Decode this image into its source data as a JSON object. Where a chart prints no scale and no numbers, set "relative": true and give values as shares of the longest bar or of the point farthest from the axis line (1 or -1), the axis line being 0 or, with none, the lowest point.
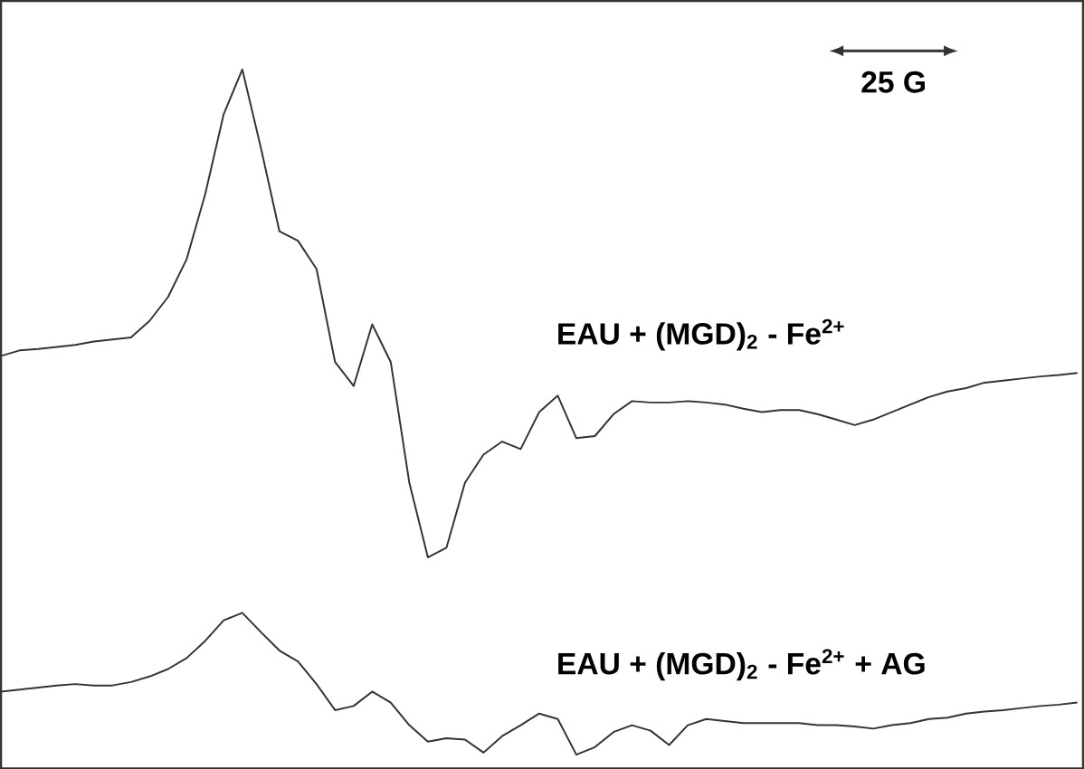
{
  "chart_data": {
    "type": "line",
    "relative": true,
    "legend": false,
    "marker": "none",
    "line_style": "solid",
    "categories": [
      null,
      null,
      null,
      null,
      null,
      null,
      null,
      null,
      null,
      null,
      null,
      null,
      null,
      null,
      null,
      null,
      null,
      null,
      null,
      null,
      null,
      null,
      null,
      null,
      null,
      null,
      null,
      null,
      null,
      null,
      null,
      null,
      null,
      null,
      null,
      null,
      null,
      null,
      null,
      null,
      null,
      null,
      null,
      null,
      null,
      null,
      null,
      null,
      null,
      null,
      null,
      null,
      null,
      null,
      null,
      null,
      null,
      null,
      null
    ],
    "series": [
      {
        "name": "EAU + (MGD)$_{2}$ - Fe$^{2+}$",
        "color": "#333333",
        "values": [
          0.582,
          0.59,
          0.592,
          0.595,
          0.598,
          0.603,
          0.606,
          0.609,
          0.633,
          0.668,
          0.723,
          0.818,
          0.935,
          1.0,
          0.886,
          0.764,
          0.75,
          0.709,
          0.573,
          0.538,
          0.628,
          0.573,
          0.397,
          0.288,
          0.302,
          0.397,
          0.438,
          0.457,
          0.446,
          0.5,
          0.524,
          0.462,
          0.465,
          0.497,
          0.516,
          0.514,
          0.514,
          0.516,
          0.514,
          0.511,
          0.505,
          0.5,
          0.503,
          0.503,
          0.497,
          0.489,
          0.481,
          0.489,
          0.5,
          0.511,
          0.522,
          0.53,
          0.535,
          0.543,
          0.546,
          0.549,
          0.552,
          0.554,
          0.557
        ]
      },
      {
        "name": "EAU + (MGD)$_{2}$ - Fe$^{2+}$ + AG",
        "color": "#333333",
        "values": [
          0.092,
          0.095,
          0.098,
          0.101,
          0.103,
          0.101,
          0.101,
          0.106,
          0.114,
          0.125,
          0.141,
          0.166,
          0.196,
          0.207,
          0.179,
          0.152,
          0.136,
          0.103,
          0.065,
          0.071,
          0.092,
          0.076,
          0.043,
          0.019,
          0.024,
          0.022,
          0.003,
          0.027,
          0.043,
          0.06,
          0.052,
          0.0,
          0.011,
          0.033,
          0.043,
          0.035,
          0.014,
          0.043,
          0.052,
          0.049,
          0.046,
          0.046,
          0.046,
          0.046,
          0.043,
          0.043,
          0.041,
          0.038,
          0.043,
          0.046,
          0.052,
          0.054,
          0.06,
          0.063,
          0.065,
          0.068,
          0.071,
          0.073,
          0.076
        ]
      }
    ],
    "annotations": [
      "25 G"
    ]
  }
}
